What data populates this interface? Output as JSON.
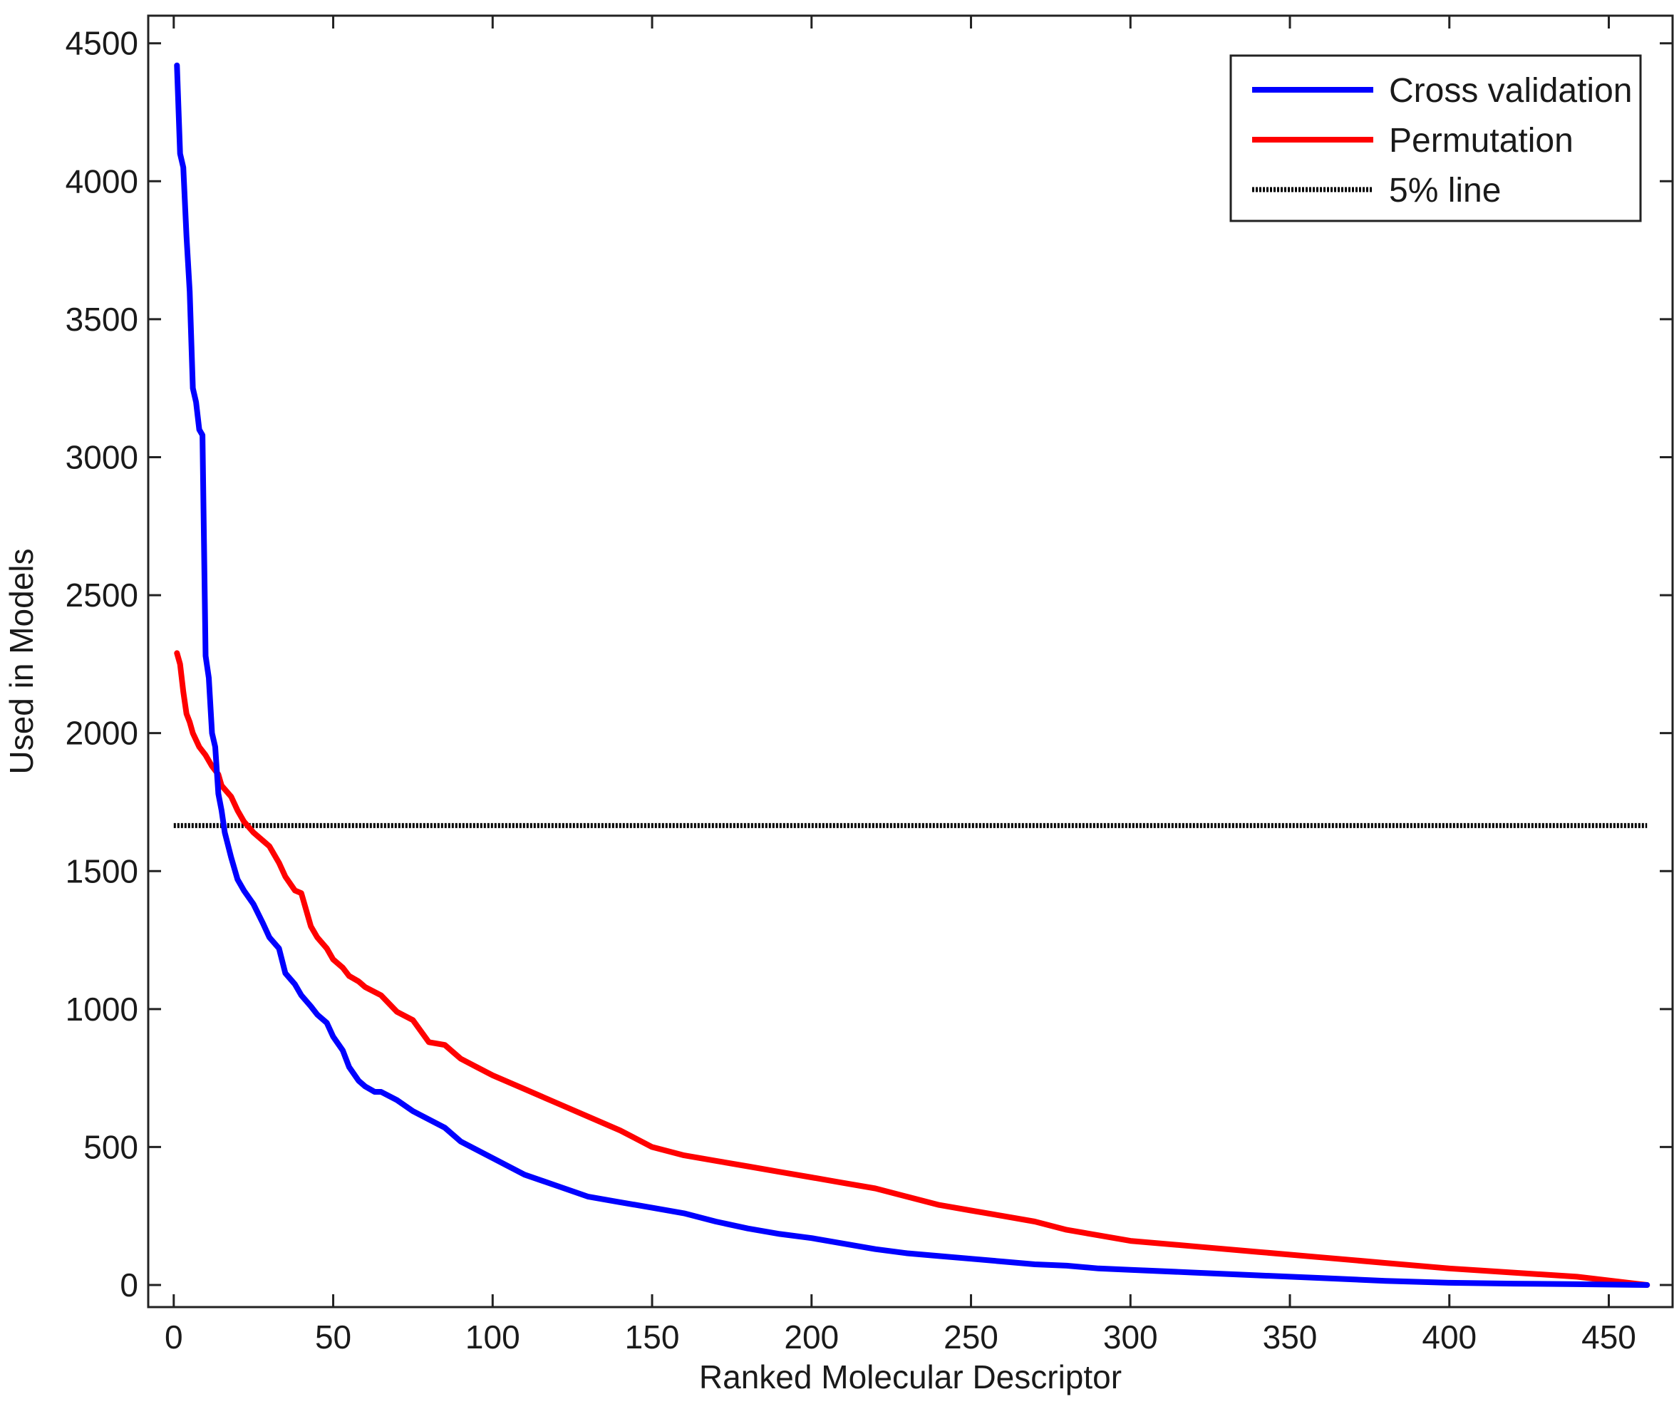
{
  "chart_data": {
    "type": "line",
    "title": "",
    "xlabel": "Ranked Molecular Descriptor",
    "ylabel": "Used in Models",
    "xlim": [
      -8,
      470
    ],
    "ylim": [
      -80,
      4600
    ],
    "xticks": [
      0,
      50,
      100,
      150,
      200,
      250,
      300,
      350,
      400,
      450
    ],
    "yticks": [
      0,
      500,
      1000,
      1500,
      2000,
      2500,
      3000,
      3500,
      4000,
      4500
    ],
    "grid": false,
    "legend_position": "top-right",
    "series": [
      {
        "name": "Cross validation",
        "color": "#0000ff",
        "style": "solid",
        "x": [
          1,
          2,
          3,
          4,
          5,
          6,
          7,
          8,
          9,
          10,
          11,
          12,
          13,
          14,
          15,
          16,
          18,
          20,
          22,
          25,
          28,
          30,
          33,
          35,
          38,
          40,
          43,
          45,
          48,
          50,
          53,
          55,
          58,
          60,
          63,
          65,
          70,
          75,
          80,
          85,
          90,
          95,
          100,
          110,
          120,
          130,
          140,
          150,
          160,
          170,
          180,
          190,
          200,
          210,
          220,
          230,
          240,
          250,
          260,
          270,
          280,
          290,
          300,
          320,
          340,
          360,
          380,
          400,
          420,
          440,
          462
        ],
        "y": [
          4420,
          4100,
          4050,
          3800,
          3600,
          3250,
          3200,
          3100,
          3080,
          2280,
          2200,
          2000,
          1950,
          1780,
          1720,
          1640,
          1550,
          1470,
          1430,
          1380,
          1310,
          1260,
          1220,
          1130,
          1090,
          1050,
          1010,
          980,
          950,
          900,
          850,
          790,
          740,
          720,
          700,
          700,
          670,
          630,
          600,
          570,
          520,
          490,
          460,
          400,
          360,
          320,
          300,
          280,
          260,
          230,
          205,
          185,
          170,
          150,
          130,
          115,
          105,
          95,
          85,
          75,
          70,
          60,
          55,
          45,
          35,
          25,
          15,
          8,
          5,
          3,
          0
        ]
      },
      {
        "name": "Permutation",
        "color": "#ff0000",
        "style": "solid",
        "x": [
          1,
          2,
          3,
          4,
          5,
          6,
          8,
          10,
          12,
          14,
          15,
          18,
          20,
          22,
          25,
          28,
          30,
          33,
          35,
          38,
          40,
          43,
          45,
          48,
          50,
          53,
          55,
          58,
          60,
          65,
          70,
          75,
          80,
          85,
          90,
          95,
          100,
          110,
          120,
          130,
          140,
          150,
          160,
          170,
          180,
          190,
          200,
          210,
          220,
          230,
          240,
          250,
          260,
          270,
          280,
          290,
          300,
          320,
          340,
          360,
          380,
          400,
          420,
          440,
          462
        ],
        "y": [
          2290,
          2250,
          2150,
          2070,
          2040,
          2000,
          1950,
          1920,
          1880,
          1850,
          1810,
          1770,
          1720,
          1680,
          1640,
          1610,
          1590,
          1530,
          1480,
          1430,
          1420,
          1300,
          1260,
          1220,
          1180,
          1150,
          1120,
          1100,
          1080,
          1050,
          990,
          960,
          880,
          870,
          820,
          790,
          760,
          710,
          660,
          610,
          560,
          500,
          470,
          450,
          430,
          410,
          390,
          370,
          350,
          320,
          290,
          270,
          250,
          230,
          200,
          180,
          160,
          140,
          120,
          100,
          80,
          60,
          45,
          30,
          0
        ]
      },
      {
        "name": "5% line",
        "color": "#000000",
        "style": "dotted",
        "x": [
          0,
          462
        ],
        "y": [
          1665,
          1665
        ]
      }
    ]
  }
}
